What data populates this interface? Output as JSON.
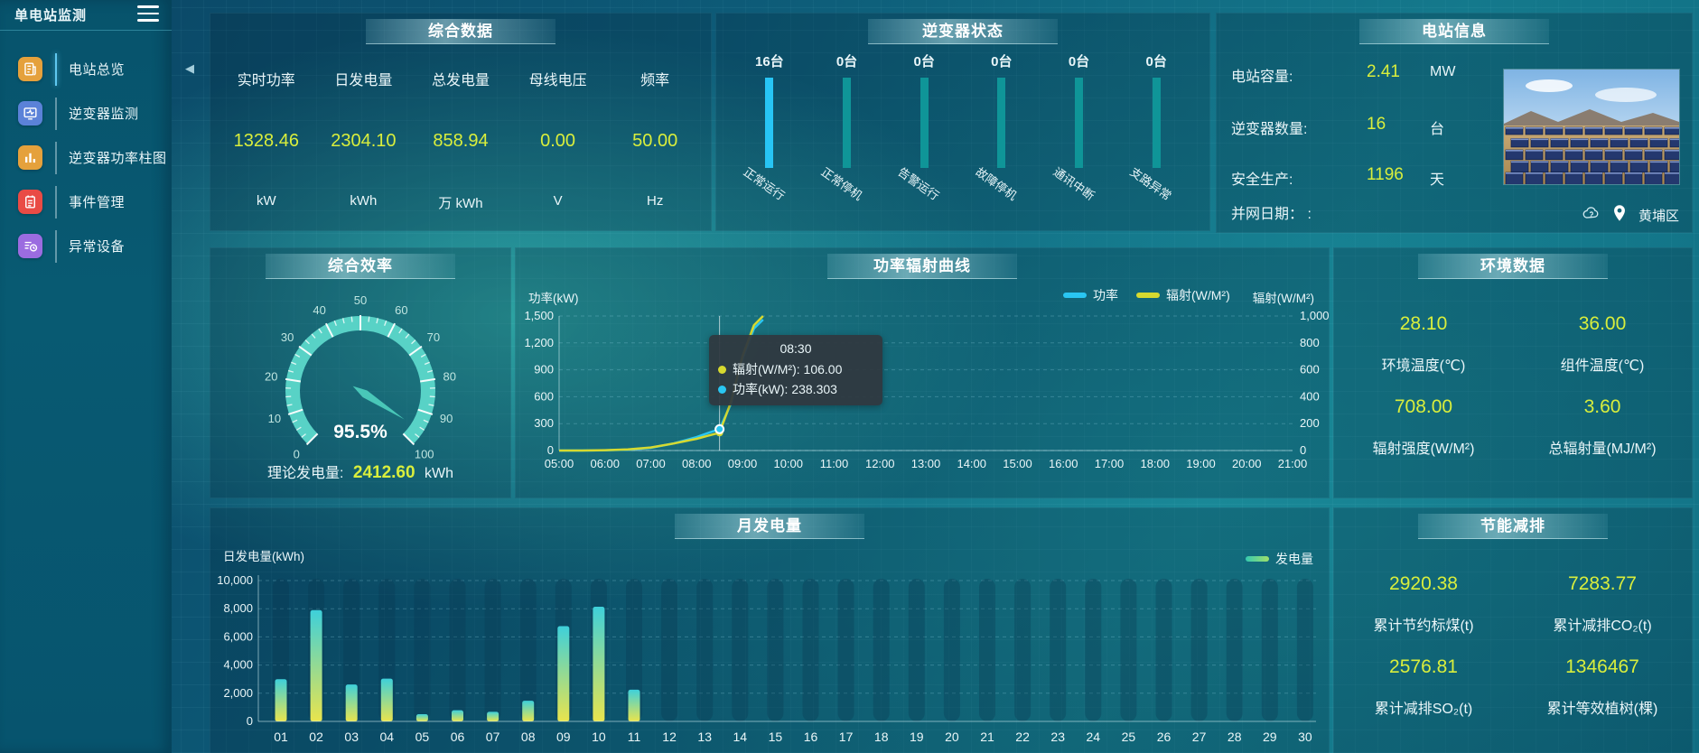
{
  "app": {
    "title": "单电站监测"
  },
  "sidebar": {
    "items": [
      {
        "id": "station-overview",
        "label": "电站总览",
        "icon": "doc",
        "color": "#e5a13c",
        "active": true
      },
      {
        "id": "inverter-monitor",
        "label": "逆变器监测",
        "icon": "monitor",
        "color": "#5b82d8",
        "active": false
      },
      {
        "id": "inverter-power-bars",
        "label": "逆变器功率柱图",
        "icon": "bars",
        "color": "#e5a13c",
        "active": false
      },
      {
        "id": "event-management",
        "label": "事件管理",
        "icon": "event",
        "color": "#e94b45",
        "active": false
      },
      {
        "id": "abnormal-devices",
        "label": "异常设备",
        "icon": "abnormal",
        "color": "#9b6ce0",
        "active": false
      }
    ]
  },
  "panels": {
    "overview": {
      "title": "综合数据",
      "metrics": [
        {
          "label": "实时功率",
          "value": "1328.46",
          "unit": "kW"
        },
        {
          "label": "日发电量",
          "value": "2304.10",
          "unit": "kWh"
        },
        {
          "label": "总发电量",
          "value": "858.94",
          "unit": "万 kWh"
        },
        {
          "label": "母线电压",
          "value": "0.00",
          "unit": "V"
        },
        {
          "label": "频率",
          "value": "50.00",
          "unit": "Hz"
        }
      ]
    },
    "inverter_status": {
      "title": "逆变器状态",
      "bars": [
        {
          "count": "16台",
          "label": "正常运行",
          "highlight": true
        },
        {
          "count": "0台",
          "label": "正常停机",
          "highlight": false
        },
        {
          "count": "0台",
          "label": "告警运行",
          "highlight": false
        },
        {
          "count": "0台",
          "label": "故障停机",
          "highlight": false
        },
        {
          "count": "0台",
          "label": "通讯中断",
          "highlight": false
        },
        {
          "count": "0台",
          "label": "支路异常",
          "highlight": false
        }
      ]
    },
    "station_info": {
      "title": "电站信息",
      "rows": [
        {
          "label": "电站容量:",
          "value": "2.41",
          "unit": "MW"
        },
        {
          "label": "逆变器数量:",
          "value": "16",
          "unit": "台"
        },
        {
          "label": "安全生产:",
          "value": "1196",
          "unit": "天"
        },
        {
          "label": "并网日期： :",
          "value": "",
          "unit": ""
        }
      ],
      "location": "黄埔区"
    },
    "efficiency": {
      "title": "综合效率",
      "value_label": "95.5%",
      "footer_label": "理论发电量:",
      "footer_value": "2412.60",
      "footer_unit": "kWh"
    },
    "power_curve": {
      "title": "功率辐射曲线",
      "y_left_name": "功率(kW)",
      "y_right_name": "辐射(W/M²)",
      "legend": [
        {
          "name": "功率",
          "color": "#29c6f2"
        },
        {
          "name": "辐射(W/M²)",
          "color": "#d6d92f"
        }
      ],
      "tooltip": {
        "time": "08:30",
        "rows": [
          {
            "color": "#d6d92f",
            "text": "辐射(W/M²): 106.00"
          },
          {
            "color": "#29c6f2",
            "text": "功率(kW): 238.303"
          }
        ]
      }
    },
    "environment": {
      "title": "环境数据",
      "metrics": [
        {
          "value": "28.10",
          "label": "环境温度(℃)"
        },
        {
          "value": "36.00",
          "label": "组件温度(℃)"
        },
        {
          "value": "708.00",
          "label": "辐射强度(W/M²)"
        },
        {
          "value": "3.60",
          "label": "总辐射量(MJ/M²)"
        }
      ]
    },
    "monthly": {
      "title": "月发电量",
      "y_name": "日发电量(kWh)",
      "legend": "发电量"
    },
    "energy_saving": {
      "title": "节能减排",
      "metrics": [
        {
          "value": "2920.38",
          "label": "累计节约标煤(t)"
        },
        {
          "value": "7283.77",
          "label": "累计减排CO₂(t)"
        },
        {
          "value": "2576.81",
          "label": "累计减排SO₂(t)"
        },
        {
          "value": "1346467",
          "label": "累计等效植树(棵)"
        }
      ]
    }
  },
  "chart_data": [
    {
      "id": "power_radiation_curve",
      "type": "line",
      "title": "功率辐射曲线",
      "x_ticks": [
        "05:00",
        "06:00",
        "07:00",
        "08:00",
        "09:00",
        "10:00",
        "11:00",
        "12:00",
        "13:00",
        "14:00",
        "15:00",
        "16:00",
        "17:00",
        "18:00",
        "19:00",
        "20:00",
        "21:00"
      ],
      "y_left": {
        "label": "功率(kW)",
        "min": 0,
        "max": 1500,
        "step": 300
      },
      "y_right": {
        "label": "辐射(W/M²)",
        "min": 0,
        "max": 800,
        "step": 200
      },
      "series": [
        {
          "name": "功率",
          "color": "#29c6f2",
          "axis": "left",
          "points": [
            [
              5,
              0
            ],
            [
              5.5,
              0
            ],
            [
              6,
              3
            ],
            [
              6.5,
              10
            ],
            [
              7,
              30
            ],
            [
              7.5,
              80
            ],
            [
              8,
              150
            ],
            [
              8.25,
              195
            ],
            [
              8.5,
              238.303
            ],
            [
              8.75,
              520
            ],
            [
              9,
              1020
            ],
            [
              9.25,
              1360
            ],
            [
              9.45,
              1460
            ]
          ]
        },
        {
          "name": "辐射(W/M²)",
          "color": "#d6d92f",
          "axis": "right",
          "points": [
            [
              5,
              0
            ],
            [
              5.5,
              0
            ],
            [
              6,
              2
            ],
            [
              6.5,
              7
            ],
            [
              7,
              18
            ],
            [
              7.5,
              42
            ],
            [
              8,
              70
            ],
            [
              8.25,
              88
            ],
            [
              8.5,
              106
            ],
            [
              8.75,
              290
            ],
            [
              9,
              560
            ],
            [
              9.25,
              745
            ],
            [
              9.45,
              800
            ]
          ]
        }
      ],
      "marker": {
        "time_label": "08:30",
        "time": 8.5,
        "power": 238.303,
        "radiation": 106.0
      },
      "legend_position": "top"
    },
    {
      "id": "monthly_generation",
      "type": "bar",
      "title": "月发电量",
      "ylabel": "日发电量(kWh)",
      "ylim": [
        0,
        10000
      ],
      "ystep": 2000,
      "legend": "发电量",
      "categories": [
        "01",
        "02",
        "03",
        "04",
        "05",
        "06",
        "07",
        "08",
        "09",
        "10",
        "11",
        "12",
        "13",
        "14",
        "15",
        "16",
        "17",
        "18",
        "19",
        "20",
        "21",
        "22",
        "23",
        "24",
        "25",
        "26",
        "27",
        "28",
        "29",
        "30"
      ],
      "values": [
        3000,
        7900,
        2620,
        3040,
        510,
        790,
        680,
        1470,
        6760,
        8140,
        2250,
        0,
        0,
        0,
        0,
        0,
        0,
        0,
        0,
        0,
        0,
        0,
        0,
        0,
        0,
        0,
        0,
        0,
        0,
        0
      ]
    },
    {
      "id": "efficiency_gauge",
      "type": "gauge",
      "min": 0,
      "max": 100,
      "tick_step": 10,
      "value": 95.5,
      "value_label": "95.5%"
    },
    {
      "id": "inverter_status_bars",
      "type": "bar",
      "categories": [
        "正常运行",
        "正常停机",
        "告警运行",
        "故障停机",
        "通讯中断",
        "支路异常"
      ],
      "values": [
        16,
        0,
        0,
        0,
        0,
        0
      ]
    }
  ]
}
